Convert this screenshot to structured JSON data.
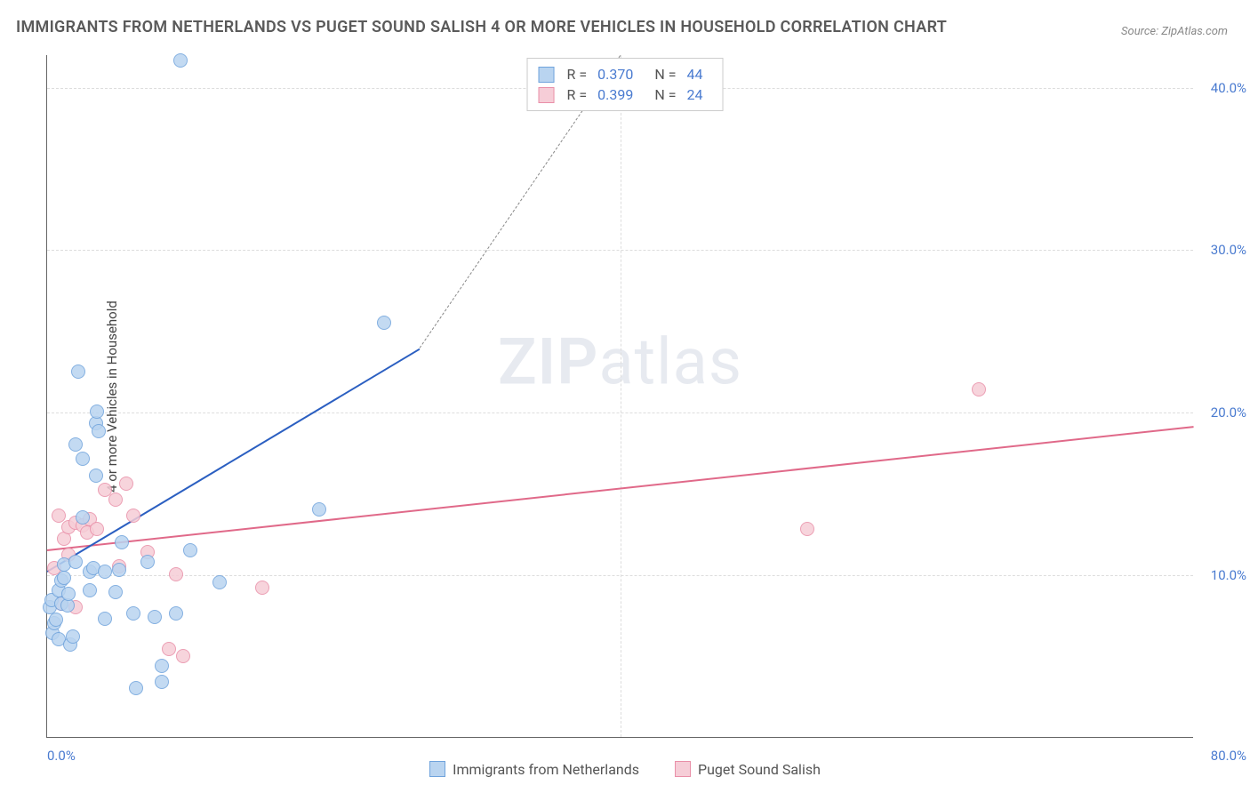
{
  "title": "IMMIGRANTS FROM NETHERLANDS VS PUGET SOUND SALISH 4 OR MORE VEHICLES IN HOUSEHOLD CORRELATION CHART",
  "source": "Source: ZipAtlas.com",
  "ylabel": "4 or more Vehicles in Household",
  "watermark_a": "ZIP",
  "watermark_b": "atlas",
  "chart": {
    "type": "scatter",
    "xlim": [
      0,
      80
    ],
    "ylim": [
      0,
      42
    ],
    "y_ticks": [
      10,
      20,
      30,
      40
    ],
    "y_tick_labels": [
      "10.0%",
      "20.0%",
      "30.0%",
      "40.0%"
    ],
    "x_ticks_major": [
      40
    ],
    "x_tick_0": "0.0%",
    "x_tick_max": "80.0%",
    "grid_color": "#dddddd",
    "axis_color": "#666666",
    "background_color": "#ffffff",
    "series": [
      {
        "name": "Immigrants from Netherlands",
        "fill": "#b9d4f0",
        "stroke": "#6fa3dc",
        "trend_color": "#2b5fc1",
        "point_radius": 8,
        "r_value": "0.370",
        "n_value": "44",
        "trend": {
          "x1": 0,
          "y1": 10.3,
          "x2": 26,
          "y2": 24.0,
          "x2_ext": 40,
          "y2_ext": 42
        },
        "points": [
          [
            0.2,
            8.0
          ],
          [
            0.3,
            8.4
          ],
          [
            0.4,
            6.4
          ],
          [
            0.5,
            7.0
          ],
          [
            0.6,
            7.2
          ],
          [
            0.8,
            6.0
          ],
          [
            0.8,
            9.0
          ],
          [
            1.0,
            8.2
          ],
          [
            1.0,
            9.6
          ],
          [
            1.2,
            10.6
          ],
          [
            1.2,
            9.8
          ],
          [
            1.4,
            8.1
          ],
          [
            1.5,
            8.8
          ],
          [
            1.6,
            5.7
          ],
          [
            1.8,
            6.2
          ],
          [
            2.0,
            10.8
          ],
          [
            2.0,
            18.0
          ],
          [
            2.2,
            22.5
          ],
          [
            2.5,
            17.1
          ],
          [
            2.5,
            13.5
          ],
          [
            3.0,
            10.2
          ],
          [
            3.0,
            9.0
          ],
          [
            3.2,
            10.4
          ],
          [
            3.4,
            16.1
          ],
          [
            3.4,
            19.3
          ],
          [
            3.5,
            20.0
          ],
          [
            3.6,
            18.8
          ],
          [
            4.0,
            10.2
          ],
          [
            4.0,
            7.3
          ],
          [
            4.8,
            8.9
          ],
          [
            5.0,
            10.3
          ],
          [
            5.2,
            12.0
          ],
          [
            6.0,
            7.6
          ],
          [
            6.2,
            3.0
          ],
          [
            7.0,
            10.8
          ],
          [
            7.5,
            7.4
          ],
          [
            8.0,
            4.4
          ],
          [
            8.0,
            3.4
          ],
          [
            9.0,
            7.6
          ],
          [
            9.3,
            41.6
          ],
          [
            10.0,
            11.5
          ],
          [
            12.0,
            9.5
          ],
          [
            19.0,
            14.0
          ],
          [
            23.5,
            25.5
          ]
        ]
      },
      {
        "name": "Puget Sound Salish",
        "fill": "#f6cdd7",
        "stroke": "#e98fa8",
        "trend_color": "#e06989",
        "point_radius": 8,
        "r_value": "0.399",
        "n_value": "24",
        "trend": {
          "x1": 0,
          "y1": 11.6,
          "x2": 80,
          "y2": 19.2
        },
        "points": [
          [
            0.5,
            10.4
          ],
          [
            0.8,
            13.6
          ],
          [
            1.0,
            8.2
          ],
          [
            1.2,
            12.2
          ],
          [
            1.5,
            12.9
          ],
          [
            1.5,
            11.2
          ],
          [
            2.0,
            8.0
          ],
          [
            2.0,
            13.2
          ],
          [
            2.5,
            13.0
          ],
          [
            2.8,
            12.6
          ],
          [
            3.0,
            13.4
          ],
          [
            3.5,
            12.8
          ],
          [
            4.0,
            15.2
          ],
          [
            4.8,
            14.6
          ],
          [
            5.0,
            10.5
          ],
          [
            5.5,
            15.6
          ],
          [
            6.0,
            13.6
          ],
          [
            7.0,
            11.4
          ],
          [
            8.5,
            5.4
          ],
          [
            9.0,
            10.0
          ],
          [
            9.5,
            5.0
          ],
          [
            15.0,
            9.2
          ],
          [
            53.0,
            12.8
          ],
          [
            65.0,
            21.4
          ]
        ]
      }
    ]
  },
  "legend_bottom": {
    "series1_label": "Immigrants from Netherlands",
    "series2_label": "Puget Sound Salish"
  },
  "legend_stats": {
    "r_label": "R =",
    "n_label": "N ="
  }
}
